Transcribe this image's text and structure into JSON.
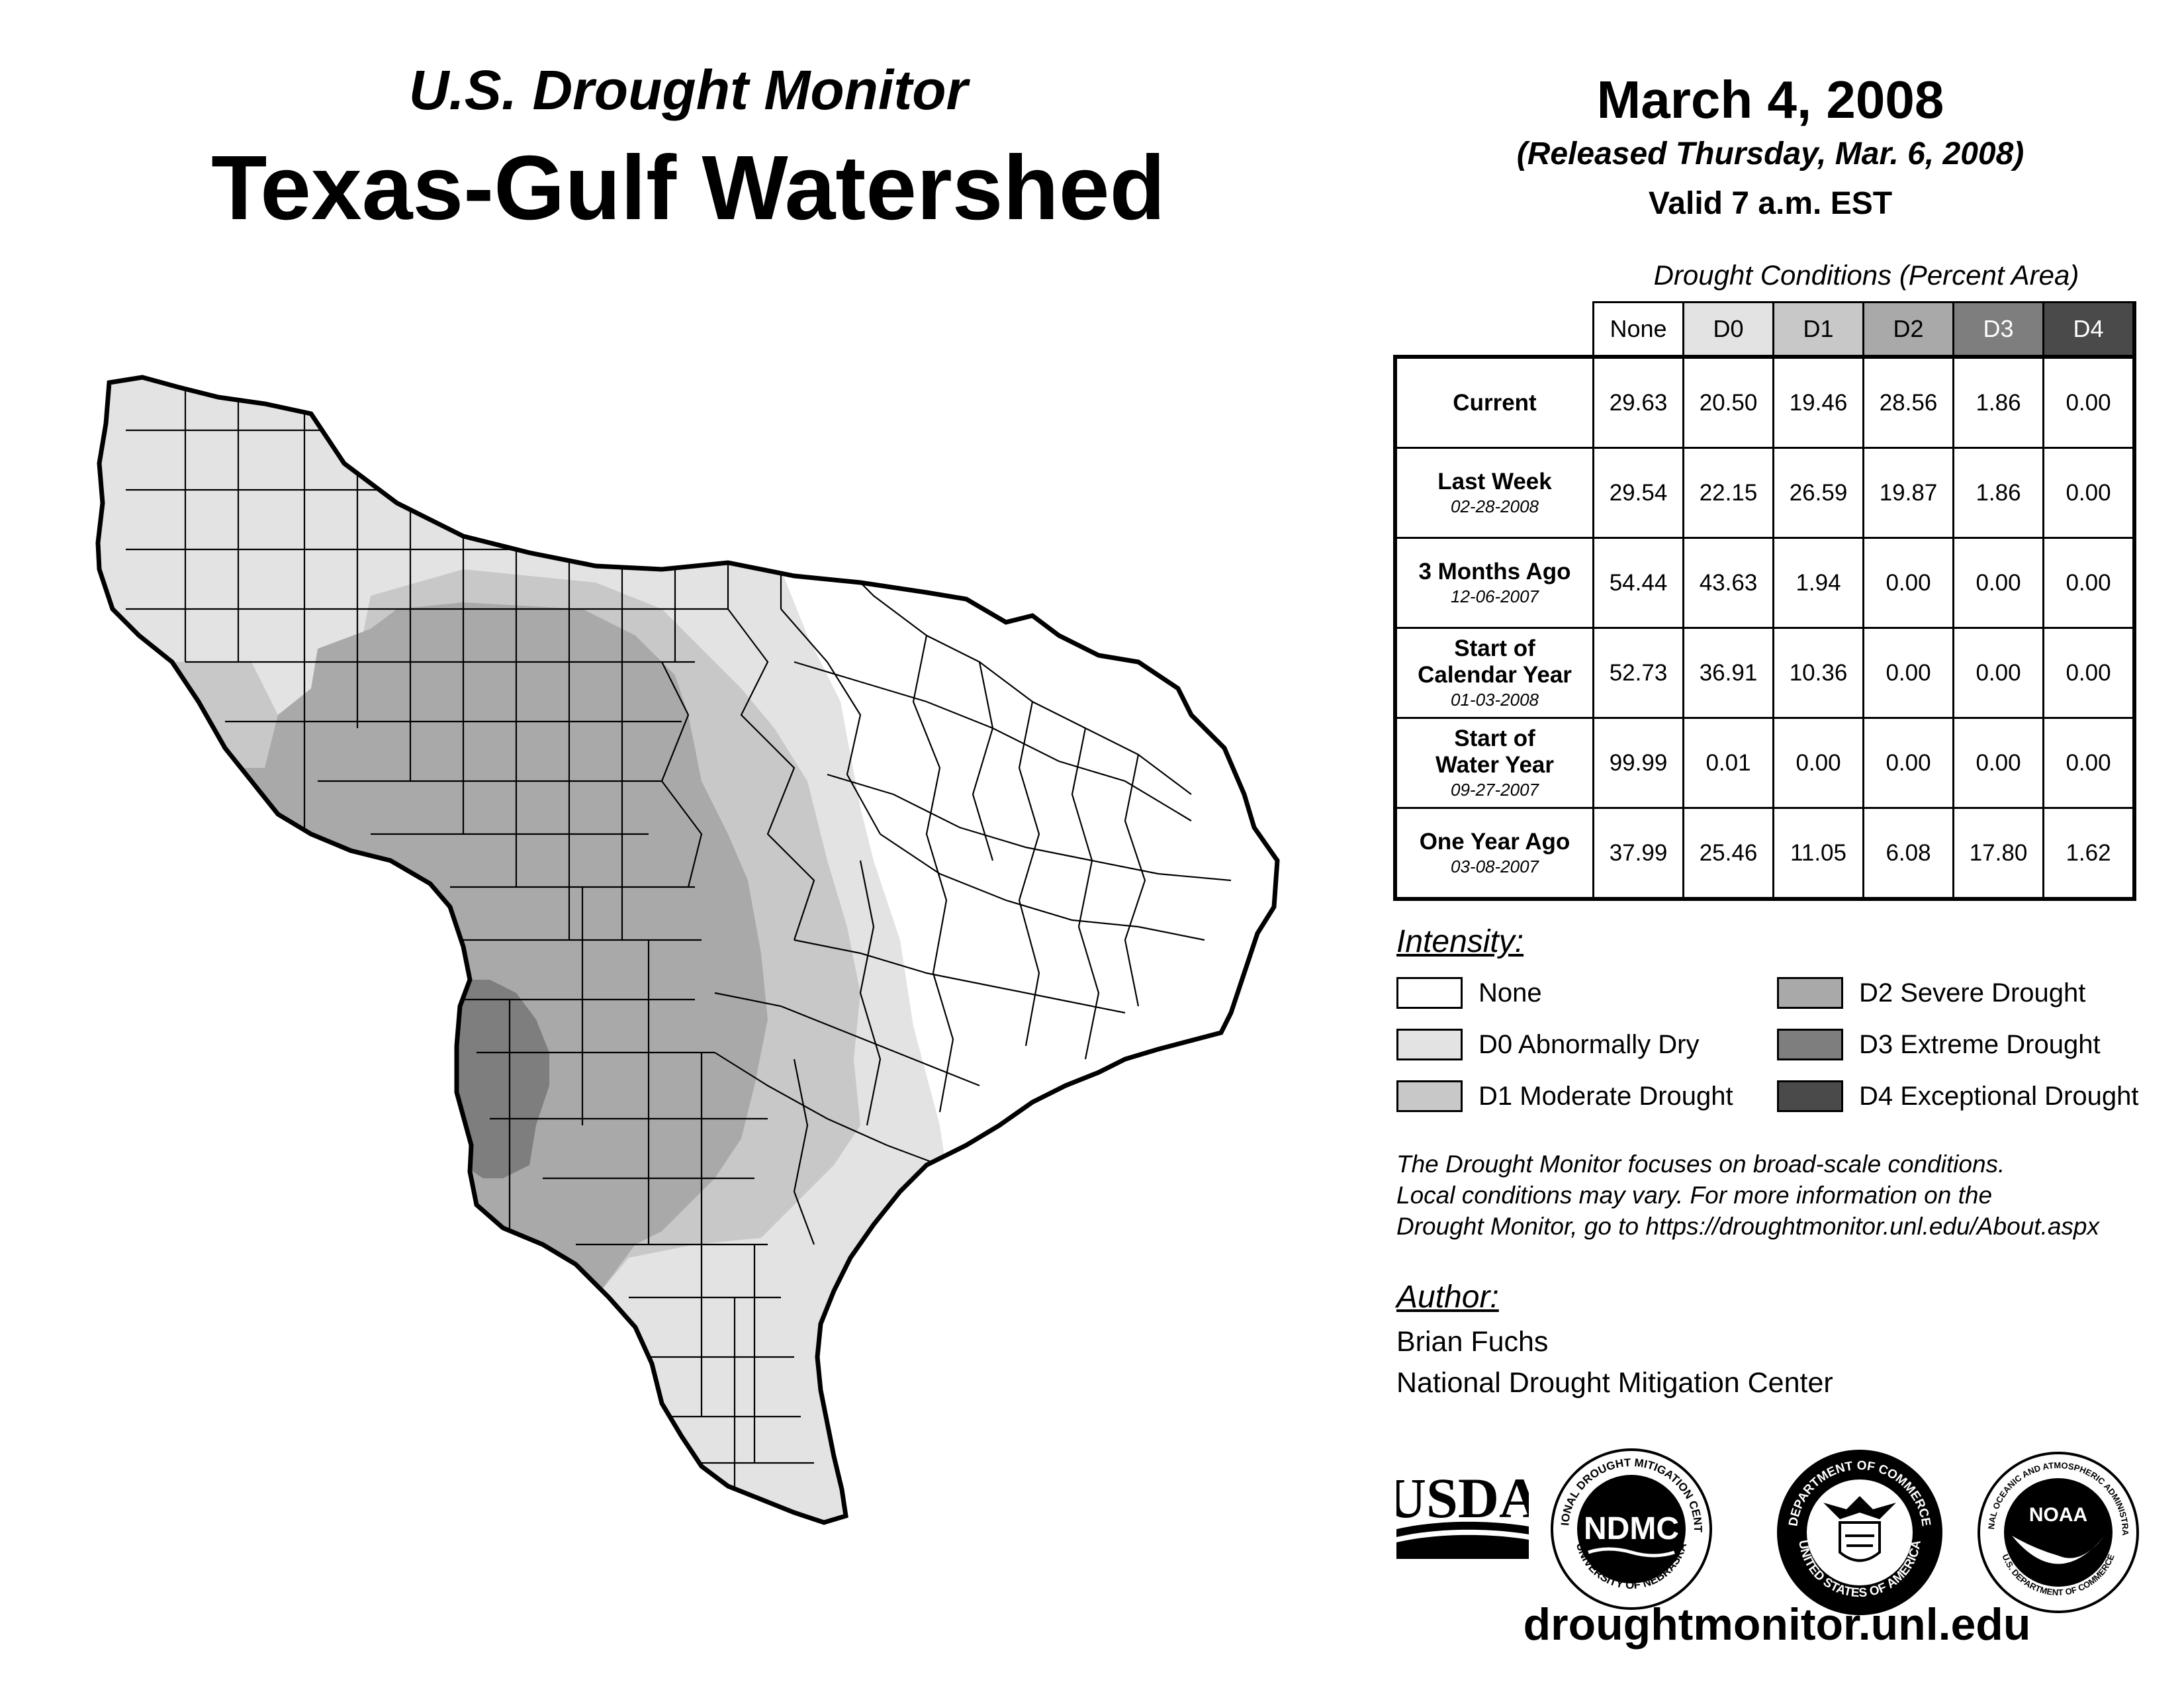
{
  "header": {
    "subtitle": "U.S. Drought Monitor",
    "title": "Texas-Gulf Watershed",
    "date": "March 4, 2008",
    "released": "(Released Thursday, Mar. 6, 2008)",
    "valid": "Valid 7 a.m. EST"
  },
  "table": {
    "caption": "Drought Conditions (Percent Area)",
    "columns": [
      "None",
      "D0",
      "D1",
      "D2",
      "D3",
      "D4"
    ],
    "rows": [
      {
        "label": "Current",
        "label2": "",
        "date": "",
        "values": [
          "29.63",
          "20.50",
          "19.46",
          "28.56",
          "1.86",
          "0.00"
        ]
      },
      {
        "label": "Last Week",
        "label2": "",
        "date": "02-28-2008",
        "values": [
          "29.54",
          "22.15",
          "26.59",
          "19.87",
          "1.86",
          "0.00"
        ]
      },
      {
        "label": "3 Months Ago",
        "label2": "",
        "date": "12-06-2007",
        "values": [
          "54.44",
          "43.63",
          "1.94",
          "0.00",
          "0.00",
          "0.00"
        ]
      },
      {
        "label": "Start of",
        "label2": "Calendar Year",
        "date": "01-03-2008",
        "values": [
          "52.73",
          "36.91",
          "10.36",
          "0.00",
          "0.00",
          "0.00"
        ]
      },
      {
        "label": "Start of",
        "label2": "Water Year",
        "date": "09-27-2007",
        "values": [
          "99.99",
          "0.01",
          "0.00",
          "0.00",
          "0.00",
          "0.00"
        ]
      },
      {
        "label": "One Year Ago",
        "label2": "",
        "date": "03-08-2007",
        "values": [
          "37.99",
          "25.46",
          "11.05",
          "6.08",
          "17.80",
          "1.62"
        ]
      }
    ]
  },
  "intensity": {
    "heading": "Intensity:",
    "items": [
      {
        "label": "None",
        "color": "#ffffff"
      },
      {
        "label": "D0 Abnormally Dry",
        "color": "#e3e3e3"
      },
      {
        "label": "D1 Moderate Drought",
        "color": "#c8c8c8"
      },
      {
        "label": "D2 Severe Drought",
        "color": "#a9a9a9"
      },
      {
        "label": "D3 Extreme Drought",
        "color": "#7e7e7e"
      },
      {
        "label": "D4 Exceptional Drought",
        "color": "#4a4a4a"
      }
    ]
  },
  "disclaimer": {
    "line1": "The Drought Monitor focuses on broad-scale conditions.",
    "line2": "Local conditions may vary. For more information on the",
    "line3": "Drought Monitor, go to https://droughtmonitor.unl.edu/About.aspx"
  },
  "author": {
    "heading": "Author:",
    "name": "Brian Fuchs",
    "org": "National Drought Mitigation Center"
  },
  "logos": {
    "usda": "USDA",
    "ndmc": "NDMC",
    "ndmc_ring_top": "NATIONAL DROUGHT MITIGATION CENTER",
    "ndmc_ring_bottom": "UNIVERSITY OF NEBRASKA",
    "doc_ring_top": "DEPARTMENT OF COMMERCE",
    "doc_ring_bottom": "UNITED STATES OF AMERICA",
    "noaa": "NOAA",
    "noaa_ring_top": "NATIONAL OCEANIC AND ATMOSPHERIC ADMINISTRATION",
    "noaa_ring_bottom": "U.S. DEPARTMENT OF COMMERCE"
  },
  "website": "droughtmonitor.unl.edu"
}
